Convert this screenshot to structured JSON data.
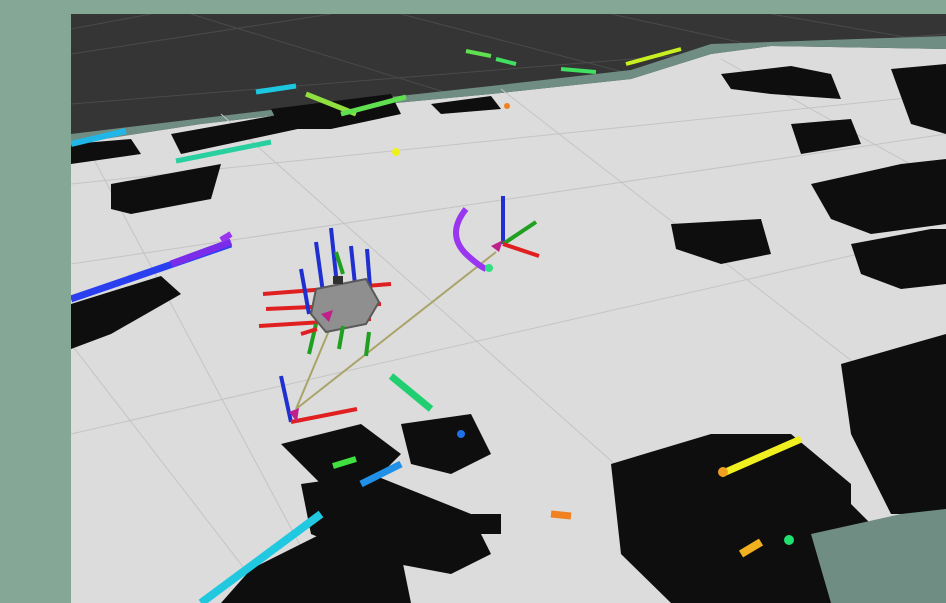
{
  "colors": {
    "background": "#84a796",
    "floor_dark": "#353535",
    "map_free": "#dcdcdc",
    "map_occupied": "#0e0e0e",
    "map_unknown_band": "#6f8d83",
    "grid_line": "#5a5a5a",
    "axis_x": "#e02020",
    "axis_y": "#20a020",
    "axis_z": "#2030d0",
    "path_line": "#a9a46a",
    "robot_body": "#8f8f8f",
    "arrow": "#c0208c"
  },
  "icons": {
    "robot": "robot-model-icon",
    "goal": "goal-frame-icon",
    "target": "target-frame-icon"
  }
}
